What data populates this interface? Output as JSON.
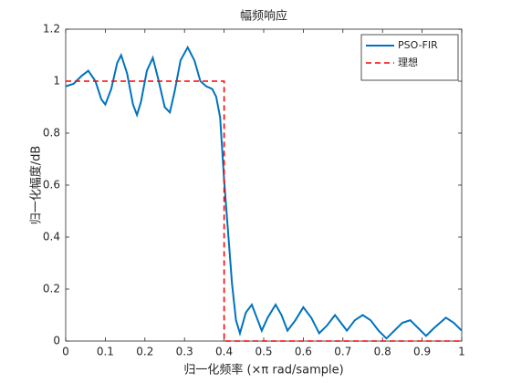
{
  "chart_data": {
    "type": "line",
    "title": "幅频响应",
    "x_label": "归一化频率 (×π rad/sample)",
    "y_label": "归一化幅度/dB",
    "series": [
      {
        "name": "PSO-FIR",
        "color": "#0072BD",
        "dash": false,
        "x": [
          0,
          0.02,
          0.04,
          0.057,
          0.075,
          0.09,
          0.1,
          0.115,
          0.13,
          0.14,
          0.155,
          0.17,
          0.18,
          0.19,
          0.205,
          0.22,
          0.235,
          0.25,
          0.263,
          0.275,
          0.29,
          0.308,
          0.325,
          0.34,
          0.355,
          0.37,
          0.38,
          0.39,
          0.4,
          0.41,
          0.42,
          0.43,
          0.44,
          0.455,
          0.47,
          0.485,
          0.495,
          0.51,
          0.53,
          0.545,
          0.56,
          0.58,
          0.6,
          0.62,
          0.64,
          0.66,
          0.68,
          0.7,
          0.71,
          0.73,
          0.75,
          0.77,
          0.79,
          0.81,
          0.83,
          0.85,
          0.87,
          0.89,
          0.91,
          0.93,
          0.96,
          0.98,
          1.0
        ],
        "values": [
          0.98,
          0.99,
          1.02,
          1.04,
          1.0,
          0.93,
          0.91,
          0.97,
          1.07,
          1.1,
          1.03,
          0.91,
          0.87,
          0.92,
          1.04,
          1.09,
          1.0,
          0.9,
          0.88,
          0.96,
          1.08,
          1.13,
          1.08,
          1.0,
          0.98,
          0.97,
          0.94,
          0.86,
          0.62,
          0.42,
          0.22,
          0.08,
          0.03,
          0.11,
          0.14,
          0.08,
          0.04,
          0.09,
          0.14,
          0.1,
          0.04,
          0.08,
          0.13,
          0.09,
          0.03,
          0.06,
          0.1,
          0.06,
          0.04,
          0.08,
          0.1,
          0.08,
          0.04,
          0.01,
          0.04,
          0.07,
          0.08,
          0.05,
          0.02,
          0.05,
          0.09,
          0.07,
          0.04
        ]
      },
      {
        "name": "理想",
        "color": "#FF0000",
        "dash": true,
        "x": [
          0,
          0.4,
          0.4,
          1
        ],
        "values": [
          1,
          1,
          0,
          0
        ]
      }
    ],
    "xlim": [
      0,
      1
    ],
    "xticks": [
      0,
      0.1,
      0.2,
      0.3,
      0.4,
      0.5,
      0.6,
      0.7,
      0.8,
      0.9,
      1
    ],
    "ylim": [
      0,
      1.2
    ],
    "yticks": [
      0,
      0.2,
      0.4,
      0.6,
      0.8,
      1,
      1.2
    ],
    "grid": false,
    "legend": "top-right"
  }
}
